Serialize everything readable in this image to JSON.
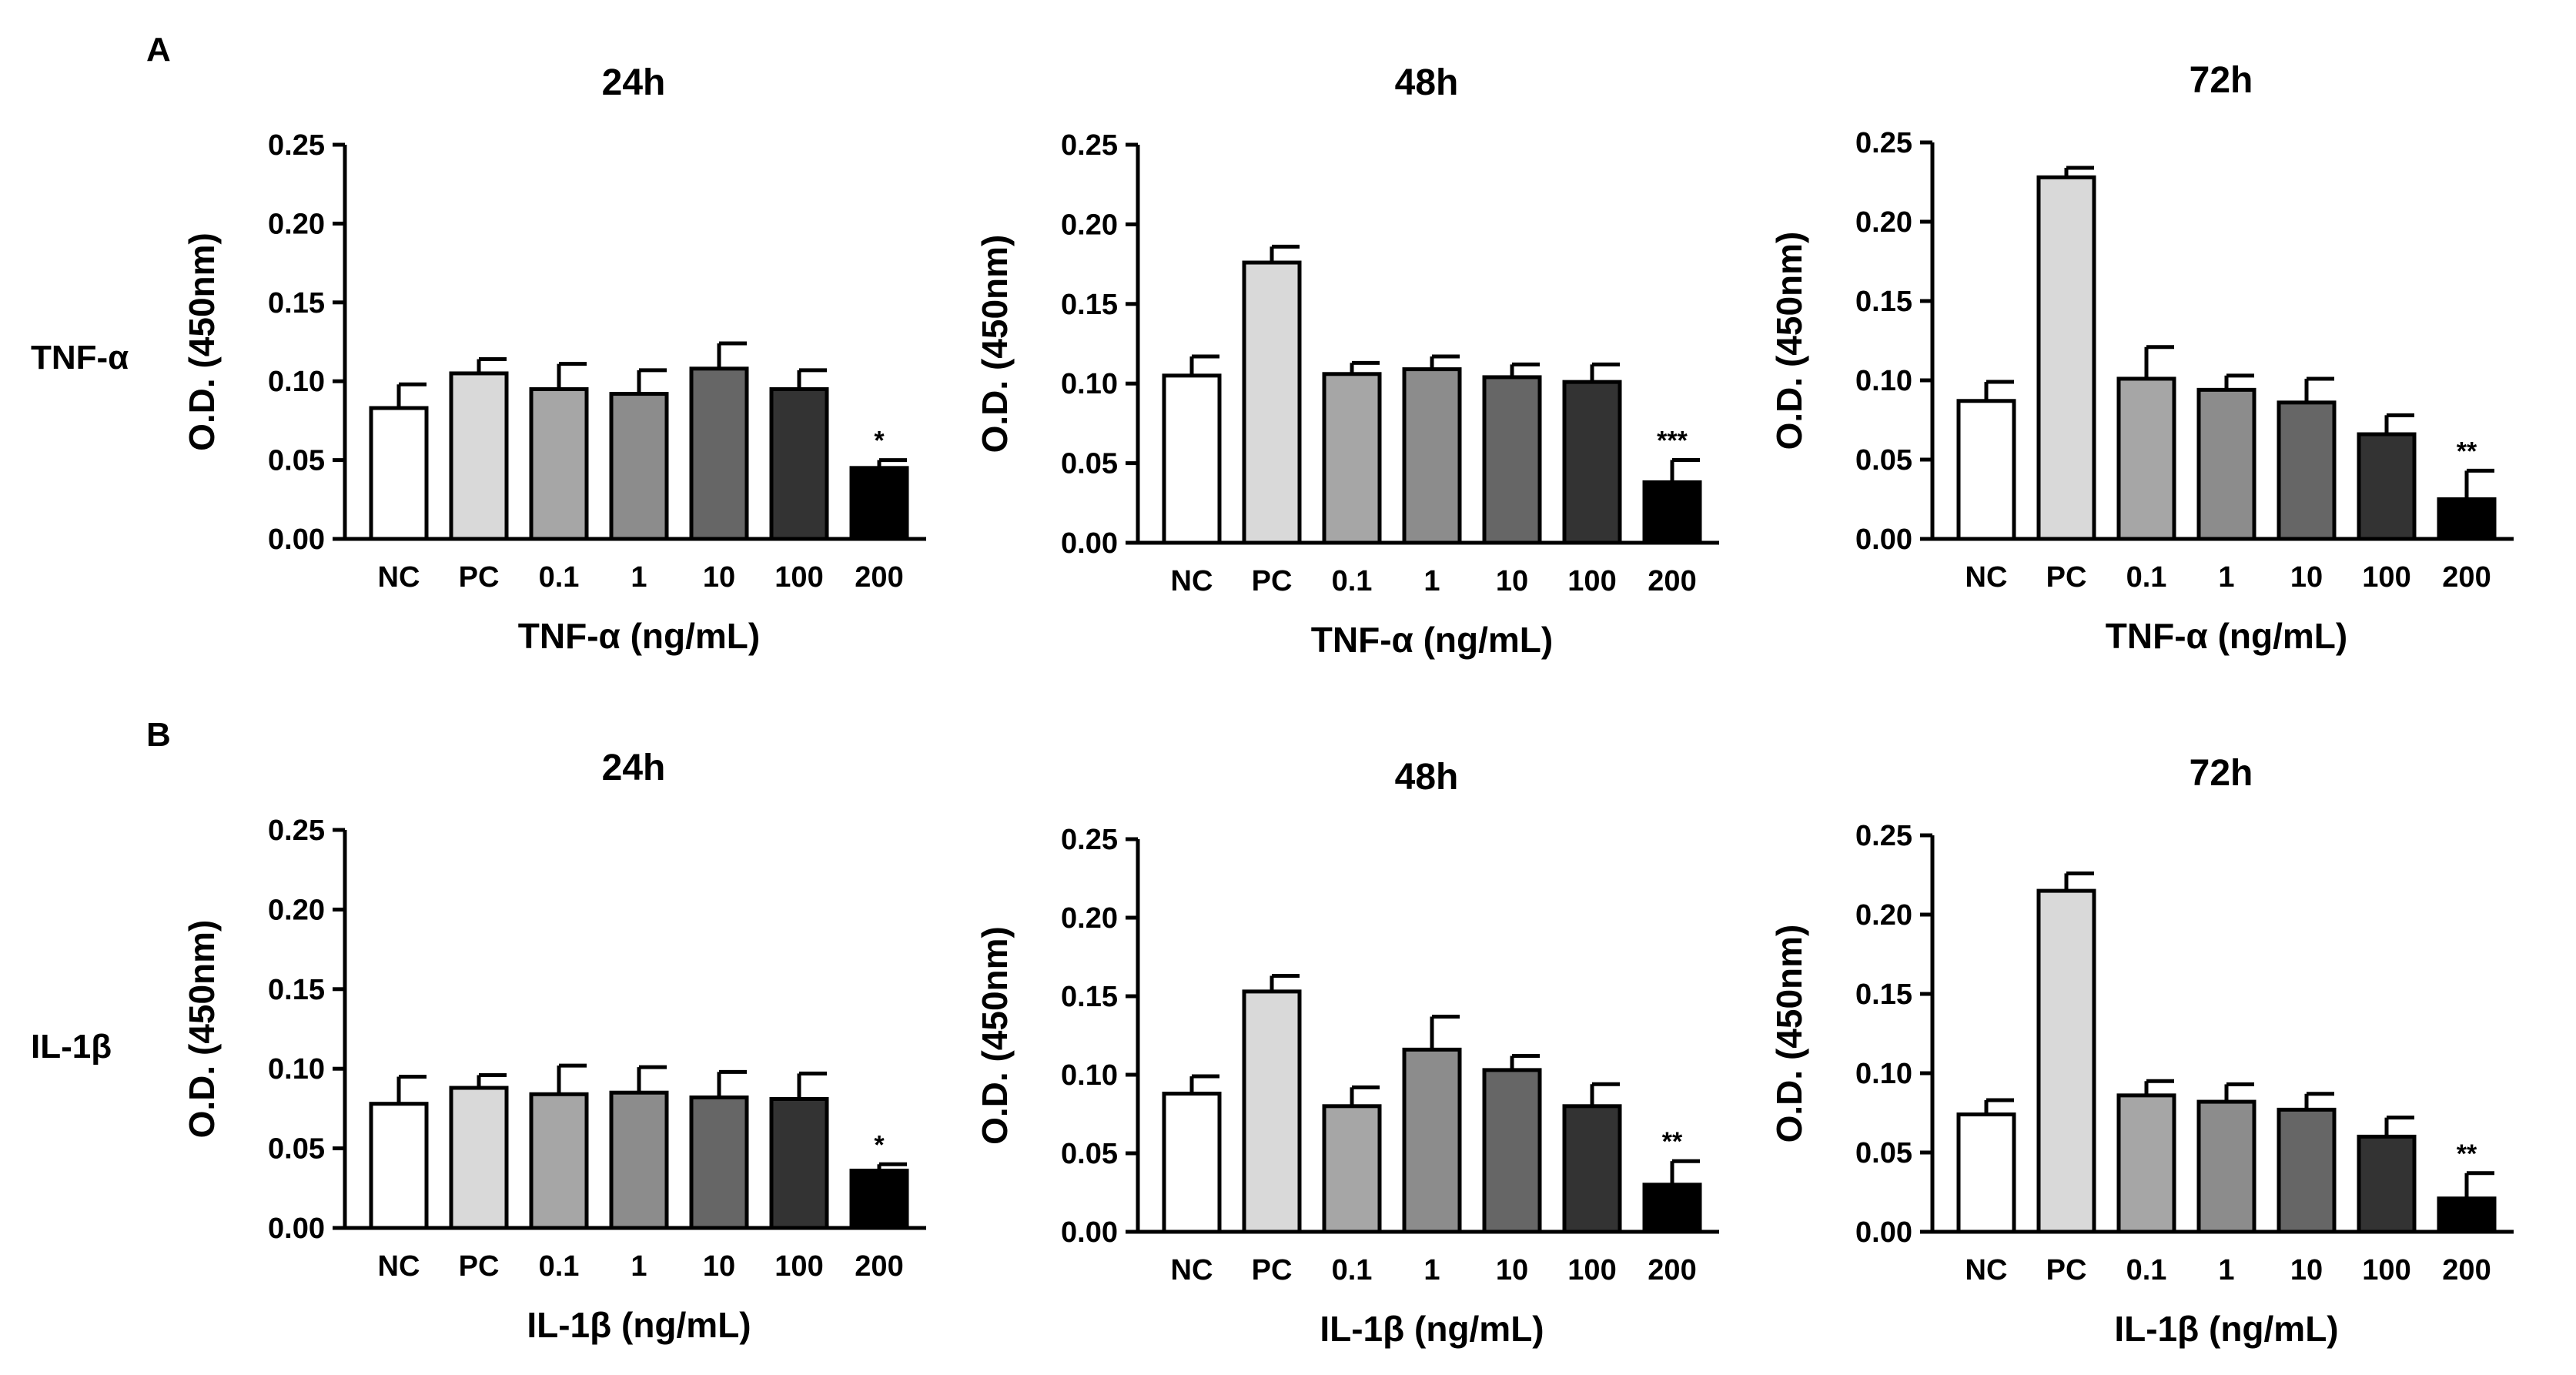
{
  "figure": {
    "panels": [
      {
        "letter": "A",
        "row_label": "TNF-α"
      },
      {
        "letter": "B",
        "row_label": "IL-1β"
      }
    ]
  },
  "colors": {
    "NC": "#ffffff",
    "PC": "#d9d9d9",
    "0.1": "#a6a6a6",
    "1": "#8c8c8c",
    "10": "#666666",
    "100": "#333333",
    "200": "#000000",
    "stroke": "#000000"
  },
  "chart_data": [
    {
      "id": "A-24h",
      "type": "bar",
      "title": "24h",
      "xlabel": "TNF-α (ng/mL)",
      "ylabel": "O.D. (450nm)",
      "ylim": [
        0,
        0.25
      ],
      "yticks": [
        "0.00",
        "0.05",
        "0.10",
        "0.15",
        "0.20",
        "0.25"
      ],
      "categories": [
        "NC",
        "PC",
        "0.1",
        "1",
        "10",
        "100",
        "200"
      ],
      "values": [
        0.083,
        0.105,
        0.095,
        0.092,
        0.108,
        0.095,
        0.045
      ],
      "errors": [
        0.015,
        0.009,
        0.016,
        0.015,
        0.016,
        0.012,
        0.005
      ],
      "annotations": [
        {
          "category": "200",
          "text": "*"
        }
      ]
    },
    {
      "id": "A-48h",
      "type": "bar",
      "title": "48h",
      "xlabel": "TNF-α (ng/mL)",
      "ylabel": "O.D. (450nm)",
      "ylim": [
        0,
        0.25
      ],
      "yticks": [
        "0.00",
        "0.05",
        "0.10",
        "0.15",
        "0.20",
        "0.25"
      ],
      "categories": [
        "NC",
        "PC",
        "0.1",
        "1",
        "10",
        "100",
        "200"
      ],
      "values": [
        0.105,
        0.176,
        0.106,
        0.109,
        0.104,
        0.101,
        0.038
      ],
      "errors": [
        0.012,
        0.01,
        0.007,
        0.008,
        0.008,
        0.011,
        0.014
      ],
      "annotations": [
        {
          "category": "200",
          "text": "***"
        }
      ]
    },
    {
      "id": "A-72h",
      "type": "bar",
      "title": "72h",
      "xlabel": "TNF-α (ng/mL)",
      "ylabel": "O.D. (450nm)",
      "ylim": [
        0,
        0.25
      ],
      "yticks": [
        "0.00",
        "0.05",
        "0.10",
        "0.15",
        "0.20",
        "0.25"
      ],
      "categories": [
        "NC",
        "PC",
        "0.1",
        "1",
        "10",
        "100",
        "200"
      ],
      "values": [
        0.087,
        0.228,
        0.101,
        0.094,
        0.086,
        0.066,
        0.025
      ],
      "errors": [
        0.012,
        0.006,
        0.02,
        0.009,
        0.015,
        0.012,
        0.018
      ],
      "annotations": [
        {
          "category": "200",
          "text": "**"
        }
      ]
    },
    {
      "id": "B-24h",
      "type": "bar",
      "title": "24h",
      "xlabel": "IL-1β (ng/mL)",
      "ylabel": "O.D. (450nm)",
      "ylim": [
        0,
        0.25
      ],
      "yticks": [
        "0.00",
        "0.05",
        "0.10",
        "0.15",
        "0.20",
        "0.25"
      ],
      "categories": [
        "NC",
        "PC",
        "0.1",
        "1",
        "10",
        "100",
        "200"
      ],
      "values": [
        0.078,
        0.088,
        0.084,
        0.085,
        0.082,
        0.081,
        0.036
      ],
      "errors": [
        0.017,
        0.008,
        0.018,
        0.016,
        0.016,
        0.016,
        0.004
      ],
      "annotations": [
        {
          "category": "200",
          "text": "*"
        }
      ]
    },
    {
      "id": "B-48h",
      "type": "bar",
      "title": "48h",
      "xlabel": "IL-1β (ng/mL)",
      "ylabel": "O.D. (450nm)",
      "ylim": [
        0,
        0.25
      ],
      "yticks": [
        "0.00",
        "0.05",
        "0.10",
        "0.15",
        "0.20",
        "0.25"
      ],
      "categories": [
        "NC",
        "PC",
        "0.1",
        "1",
        "10",
        "100",
        "200"
      ],
      "values": [
        0.088,
        0.153,
        0.08,
        0.116,
        0.103,
        0.08,
        0.03
      ],
      "errors": [
        0.011,
        0.01,
        0.012,
        0.021,
        0.009,
        0.014,
        0.015
      ],
      "annotations": [
        {
          "category": "200",
          "text": "**"
        }
      ]
    },
    {
      "id": "B-72h",
      "type": "bar",
      "title": "72h",
      "xlabel": "IL-1β (ng/mL)",
      "ylabel": "O.D. (450nm)",
      "ylim": [
        0,
        0.25
      ],
      "yticks": [
        "0.00",
        "0.05",
        "0.10",
        "0.15",
        "0.20",
        "0.25"
      ],
      "categories": [
        "NC",
        "PC",
        "0.1",
        "1",
        "10",
        "100",
        "200"
      ],
      "values": [
        0.074,
        0.215,
        0.086,
        0.082,
        0.077,
        0.06,
        0.021
      ],
      "errors": [
        0.009,
        0.011,
        0.009,
        0.011,
        0.01,
        0.012,
        0.016
      ],
      "annotations": [
        {
          "category": "200",
          "text": "**"
        }
      ]
    }
  ]
}
